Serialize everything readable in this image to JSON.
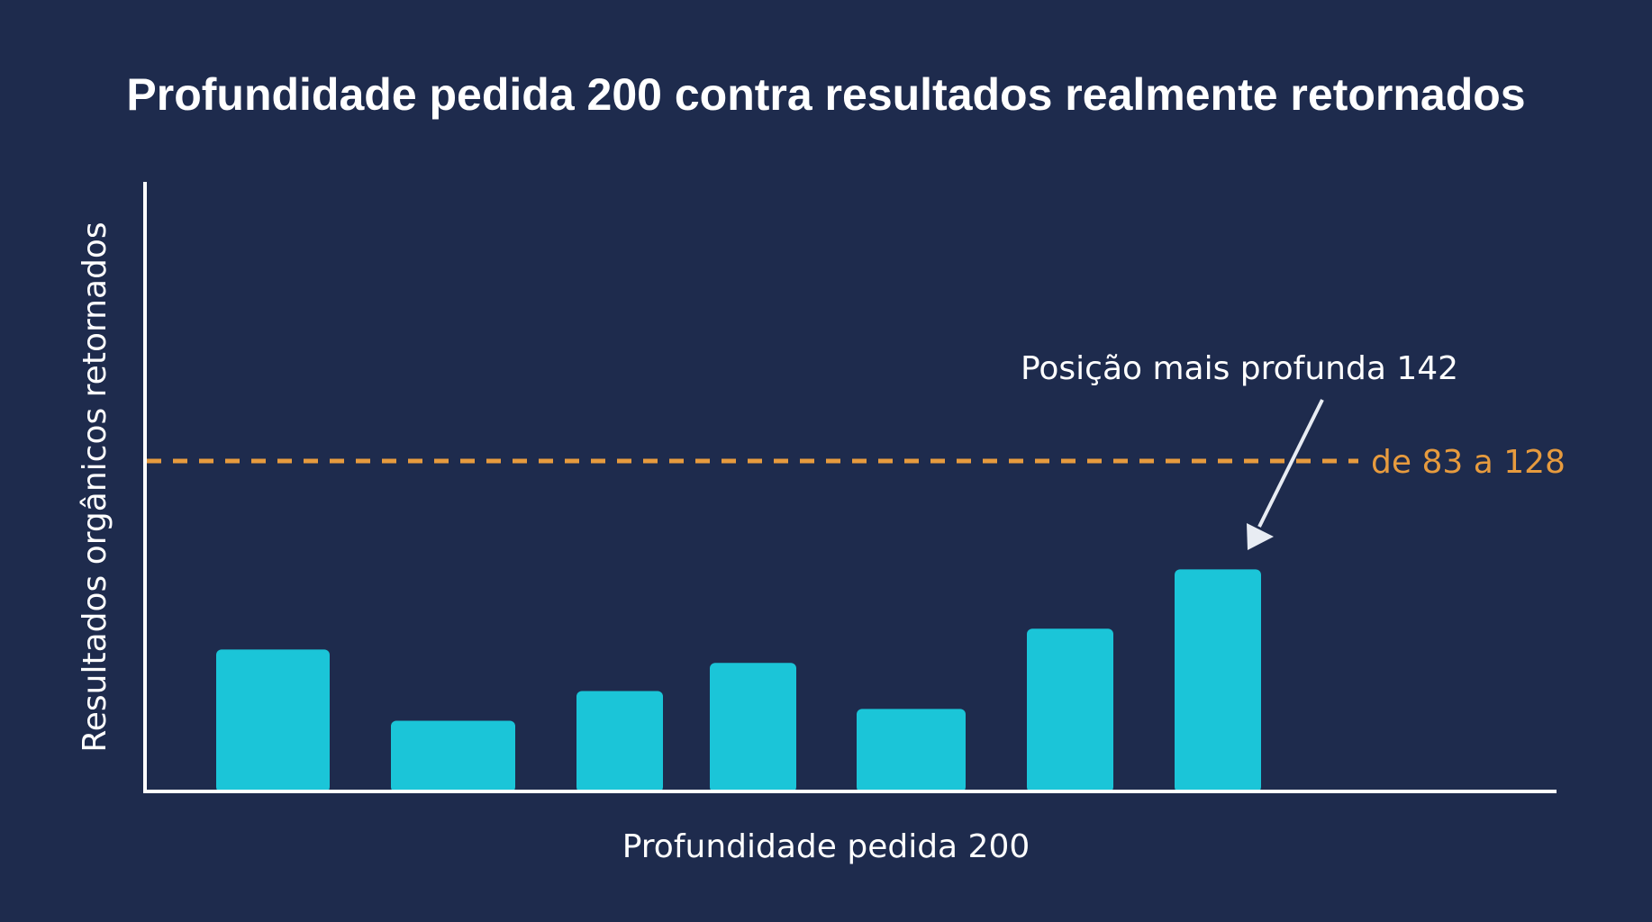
{
  "chart_data": {
    "type": "bar",
    "title": "Profundidade pedida 200 contra resultados realmente retornados",
    "xlabel": "Profundidade pedida 200",
    "ylabel": "Resultados orgânicos retornados",
    "categories": [
      "",
      "",
      "",
      "",
      "",
      "",
      ""
    ],
    "values": [
      95,
      47,
      67,
      86,
      55,
      109,
      149
    ],
    "ylim": [
      0,
      410
    ],
    "grid": false,
    "reference_line": {
      "value": 222,
      "label": "de 83 a 128",
      "style": "dashed"
    },
    "annotation": {
      "text": "Posição mais profunda 142",
      "target_index": 6
    },
    "colors": {
      "background": "#1e2b4d",
      "bar": "#1bc5d8",
      "reference_line": "#e79b3e",
      "axis": "#ffffff",
      "text": "#ffffff"
    }
  }
}
